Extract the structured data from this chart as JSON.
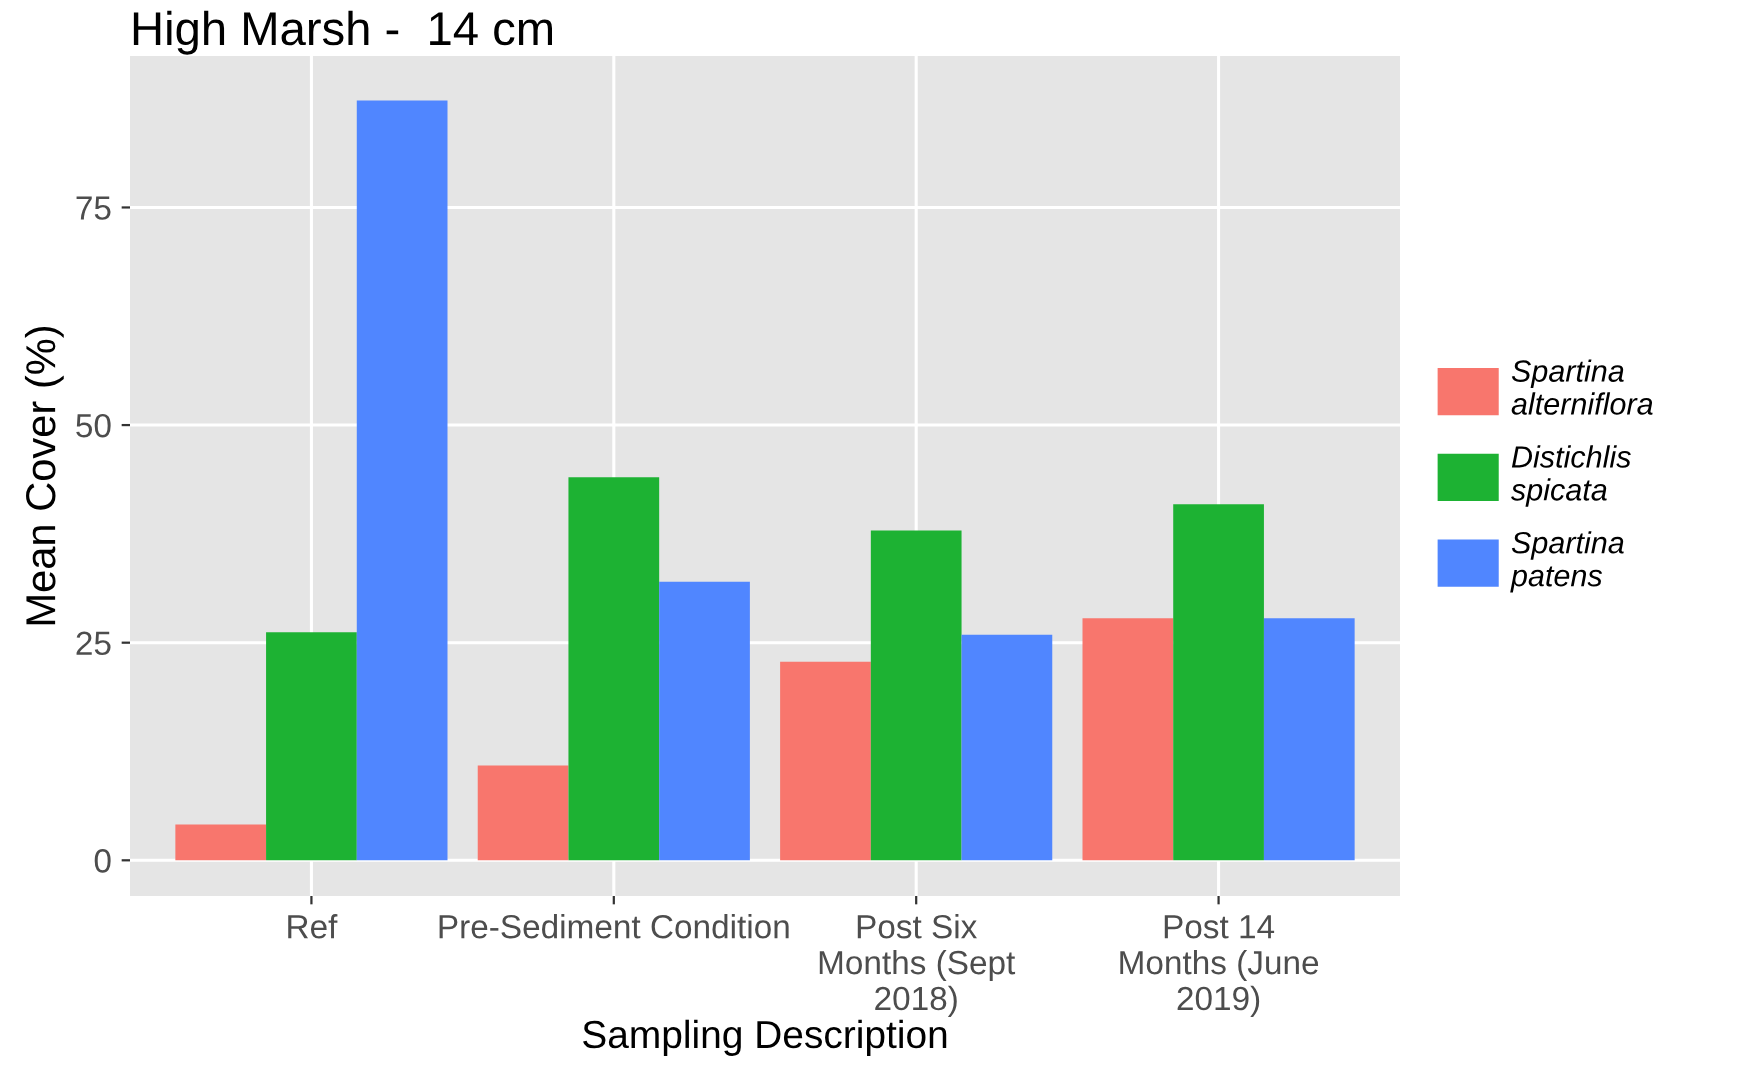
{
  "chart_data": {
    "type": "bar",
    "title": "High Marsh -  14 cm",
    "xlabel": "Sampling Description",
    "ylabel": "Mean Cover (%)",
    "categories": [
      "Ref",
      "Pre-Sediment Condition",
      "Post Six\nMonths (Sept\n2018)",
      "Post 14\nMonths (June\n2019)"
    ],
    "series": [
      {
        "name": "Spartina\nalterniflora",
        "color": "#f8766d",
        "values": [
          4.1,
          10.9,
          22.8,
          27.8
        ]
      },
      {
        "name": "Distichlis\nspicata",
        "color": "#1db233",
        "values": [
          26.2,
          44.0,
          37.9,
          40.9
        ]
      },
      {
        "name": "Spartina\npatens",
        "color": "#5086ff",
        "values": [
          87.3,
          32.0,
          25.9,
          27.8
        ]
      }
    ],
    "ylim": [
      -4.1,
      92.4
    ],
    "yticks": [
      0,
      25,
      50,
      75
    ],
    "grid": true,
    "legend": "right"
  }
}
